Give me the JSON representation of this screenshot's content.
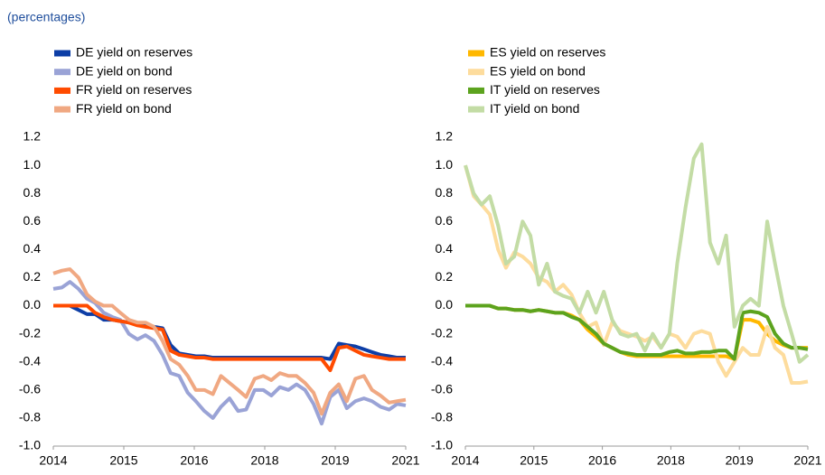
{
  "chart_data": [
    {
      "type": "line",
      "subtitle": "(percentages)",
      "x": [
        2014,
        2014.17,
        2014.33,
        2014.5,
        2014.67,
        2014.83,
        2015,
        2015.17,
        2015.33,
        2015.5,
        2015.67,
        2015.83,
        2016,
        2016.17,
        2016.33,
        2016.5,
        2016.67,
        2016.83,
        2017,
        2017.17,
        2017.33,
        2017.5,
        2017.67,
        2017.83,
        2018,
        2018.17,
        2018.33,
        2018.5,
        2018.67,
        2018.83,
        2019,
        2019.17,
        2019.33,
        2019.5,
        2019.67,
        2019.83,
        2020,
        2020.17,
        2020.33,
        2020.5,
        2020.67,
        2020.83,
        2021
      ],
      "xlim": [
        2014,
        2021
      ],
      "xticks": [
        {
          "value": 2014,
          "label": "2014"
        },
        {
          "value": 2015.4,
          "label": "2015"
        },
        {
          "value": 2016.8,
          "label": "2016"
        },
        {
          "value": 2018.2,
          "label": "2018"
        },
        {
          "value": 2019.6,
          "label": "2019"
        },
        {
          "value": 2021,
          "label": "2021"
        }
      ],
      "ylim": [
        -1,
        1.2
      ],
      "yticks": [
        {
          "value": 1.2,
          "label": "1.2"
        },
        {
          "value": 1,
          "label": "1.0"
        },
        0.8,
        0.6,
        0.4,
        0.2,
        {
          "value": 0,
          "label": "0.0"
        },
        -0.2,
        -0.4,
        -0.6,
        -0.8,
        {
          "value": -1,
          "label": "-1.0"
        }
      ],
      "series": [
        {
          "name": "DE yield on reserves",
          "color": "#0d3ea6",
          "values": [
            0,
            0,
            0,
            -0.03,
            -0.06,
            -0.06,
            -0.1,
            -0.1,
            -0.11,
            -0.12,
            -0.13,
            -0.14,
            -0.15,
            -0.16,
            -0.28,
            -0.34,
            -0.35,
            -0.36,
            -0.36,
            -0.37,
            -0.37,
            -0.37,
            -0.37,
            -0.37,
            -0.37,
            -0.37,
            -0.37,
            -0.37,
            -0.37,
            -0.37,
            -0.37,
            -0.37,
            -0.37,
            -0.38,
            -0.27,
            -0.28,
            -0.29,
            -0.31,
            -0.33,
            -0.35,
            -0.36,
            -0.37,
            -0.37
          ]
        },
        {
          "name": "DE yield on bond",
          "color": "#9aa3d6",
          "values": [
            0.12,
            0.13,
            0.17,
            0.12,
            0.05,
            0.02,
            -0.05,
            -0.08,
            -0.1,
            -0.2,
            -0.24,
            -0.21,
            -0.25,
            -0.35,
            -0.48,
            -0.5,
            -0.62,
            -0.68,
            -0.75,
            -0.8,
            -0.72,
            -0.66,
            -0.75,
            -0.74,
            -0.6,
            -0.6,
            -0.64,
            -0.58,
            -0.6,
            -0.56,
            -0.6,
            -0.7,
            -0.84,
            -0.65,
            -0.6,
            -0.73,
            -0.68,
            -0.66,
            -0.68,
            -0.72,
            -0.74,
            -0.7,
            -0.71
          ]
        },
        {
          "name": "FR yield on reserves",
          "color": "#ff4b00",
          "values": [
            0,
            0,
            0,
            0,
            0,
            -0.05,
            -0.08,
            -0.1,
            -0.11,
            -0.12,
            -0.14,
            -0.15,
            -0.16,
            -0.17,
            -0.32,
            -0.35,
            -0.36,
            -0.37,
            -0.37,
            -0.38,
            -0.38,
            -0.38,
            -0.38,
            -0.38,
            -0.38,
            -0.38,
            -0.38,
            -0.38,
            -0.38,
            -0.38,
            -0.38,
            -0.38,
            -0.38,
            -0.46,
            -0.3,
            -0.29,
            -0.32,
            -0.35,
            -0.36,
            -0.37,
            -0.38,
            -0.38,
            -0.38
          ]
        },
        {
          "name": "FR yield on bond",
          "color": "#f0a882",
          "values": [
            0.23,
            0.25,
            0.26,
            0.2,
            0.08,
            0.03,
            0,
            0,
            -0.05,
            -0.1,
            -0.12,
            -0.12,
            -0.15,
            -0.25,
            -0.38,
            -0.42,
            -0.5,
            -0.6,
            -0.6,
            -0.63,
            -0.5,
            -0.55,
            -0.6,
            -0.65,
            -0.52,
            -0.5,
            -0.53,
            -0.48,
            -0.5,
            -0.5,
            -0.55,
            -0.62,
            -0.77,
            -0.62,
            -0.56,
            -0.68,
            -0.52,
            -0.5,
            -0.6,
            -0.64,
            -0.69,
            -0.68,
            -0.67
          ]
        }
      ]
    },
    {
      "type": "line",
      "x": [
        2014,
        2014.17,
        2014.33,
        2014.5,
        2014.67,
        2014.83,
        2015,
        2015.17,
        2015.33,
        2015.5,
        2015.67,
        2015.83,
        2016,
        2016.17,
        2016.33,
        2016.5,
        2016.67,
        2016.83,
        2017,
        2017.17,
        2017.33,
        2017.5,
        2017.67,
        2017.83,
        2018,
        2018.17,
        2018.33,
        2018.5,
        2018.67,
        2018.83,
        2019,
        2019.17,
        2019.33,
        2019.5,
        2019.67,
        2019.83,
        2020,
        2020.17,
        2020.33,
        2020.5,
        2020.67,
        2020.83,
        2021
      ],
      "xlim": [
        2014,
        2021
      ],
      "xticks": [
        {
          "value": 2014,
          "label": "2014"
        },
        {
          "value": 2015.4,
          "label": "2015"
        },
        {
          "value": 2016.8,
          "label": "2016"
        },
        {
          "value": 2018.2,
          "label": "2018"
        },
        {
          "value": 2019.6,
          "label": "2019"
        },
        {
          "value": 2021,
          "label": "2021"
        }
      ],
      "ylim": [
        -1,
        1.2
      ],
      "yticks": [
        {
          "value": 1.2,
          "label": "1.2"
        },
        {
          "value": 1,
          "label": "1.0"
        },
        0.8,
        0.6,
        0.4,
        0.2,
        {
          "value": 0,
          "label": "0.0"
        },
        -0.2,
        -0.4,
        -0.6,
        -0.8,
        {
          "value": -1,
          "label": "-1.0"
        }
      ],
      "series": [
        {
          "name": "ES yield on reserves",
          "color": "#ffb800",
          "values": [
            0,
            0,
            0,
            0,
            -0.02,
            -0.02,
            -0.03,
            -0.03,
            -0.04,
            -0.03,
            -0.04,
            -0.05,
            -0.05,
            -0.07,
            -0.1,
            -0.17,
            -0.22,
            -0.27,
            -0.3,
            -0.33,
            -0.35,
            -0.36,
            -0.36,
            -0.36,
            -0.36,
            -0.36,
            -0.36,
            -0.36,
            -0.36,
            -0.36,
            -0.36,
            -0.36,
            -0.36,
            -0.38,
            -0.1,
            -0.1,
            -0.12,
            -0.2,
            -0.25,
            -0.28,
            -0.3,
            -0.3,
            -0.3
          ]
        },
        {
          "name": "ES yield on bond",
          "color": "#fddc9d",
          "values": [
            1,
            0.78,
            0.72,
            0.65,
            0.4,
            0.27,
            0.38,
            0.35,
            0.3,
            0.2,
            0.17,
            0.1,
            0.15,
            0.08,
            -0.05,
            -0.15,
            -0.12,
            -0.28,
            -0.12,
            -0.18,
            -0.2,
            -0.22,
            -0.25,
            -0.22,
            -0.3,
            -0.2,
            -0.22,
            -0.3,
            -0.2,
            -0.18,
            -0.2,
            -0.4,
            -0.5,
            -0.4,
            -0.3,
            -0.35,
            -0.35,
            -0.15,
            -0.3,
            -0.35,
            -0.55,
            -0.55,
            -0.54
          ]
        },
        {
          "name": "IT yield on reserves",
          "color": "#5ca31e",
          "values": [
            0,
            0,
            0,
            0,
            -0.02,
            -0.02,
            -0.03,
            -0.03,
            -0.04,
            -0.03,
            -0.04,
            -0.05,
            -0.05,
            -0.08,
            -0.1,
            -0.15,
            -0.2,
            -0.27,
            -0.3,
            -0.33,
            -0.34,
            -0.35,
            -0.35,
            -0.35,
            -0.35,
            -0.33,
            -0.32,
            -0.34,
            -0.34,
            -0.33,
            -0.33,
            -0.32,
            -0.32,
            -0.38,
            -0.05,
            -0.04,
            -0.05,
            -0.08,
            -0.2,
            -0.27,
            -0.3,
            -0.3,
            -0.31
          ]
        },
        {
          "name": "IT yield on bond",
          "color": "#c3dca5",
          "values": [
            1,
            0.8,
            0.72,
            0.78,
            0.57,
            0.3,
            0.35,
            0.6,
            0.5,
            0.15,
            0.3,
            0.1,
            0.07,
            0.05,
            -0.05,
            0.1,
            -0.05,
            0.1,
            -0.1,
            -0.2,
            -0.22,
            -0.2,
            -0.32,
            -0.2,
            -0.3,
            -0.2,
            0.3,
            0.7,
            1.05,
            1.15,
            0.45,
            0.3,
            0.5,
            -0.15,
            0,
            0.05,
            0,
            0.6,
            0.3,
            0,
            -0.2,
            -0.4,
            -0.35
          ]
        }
      ]
    }
  ]
}
